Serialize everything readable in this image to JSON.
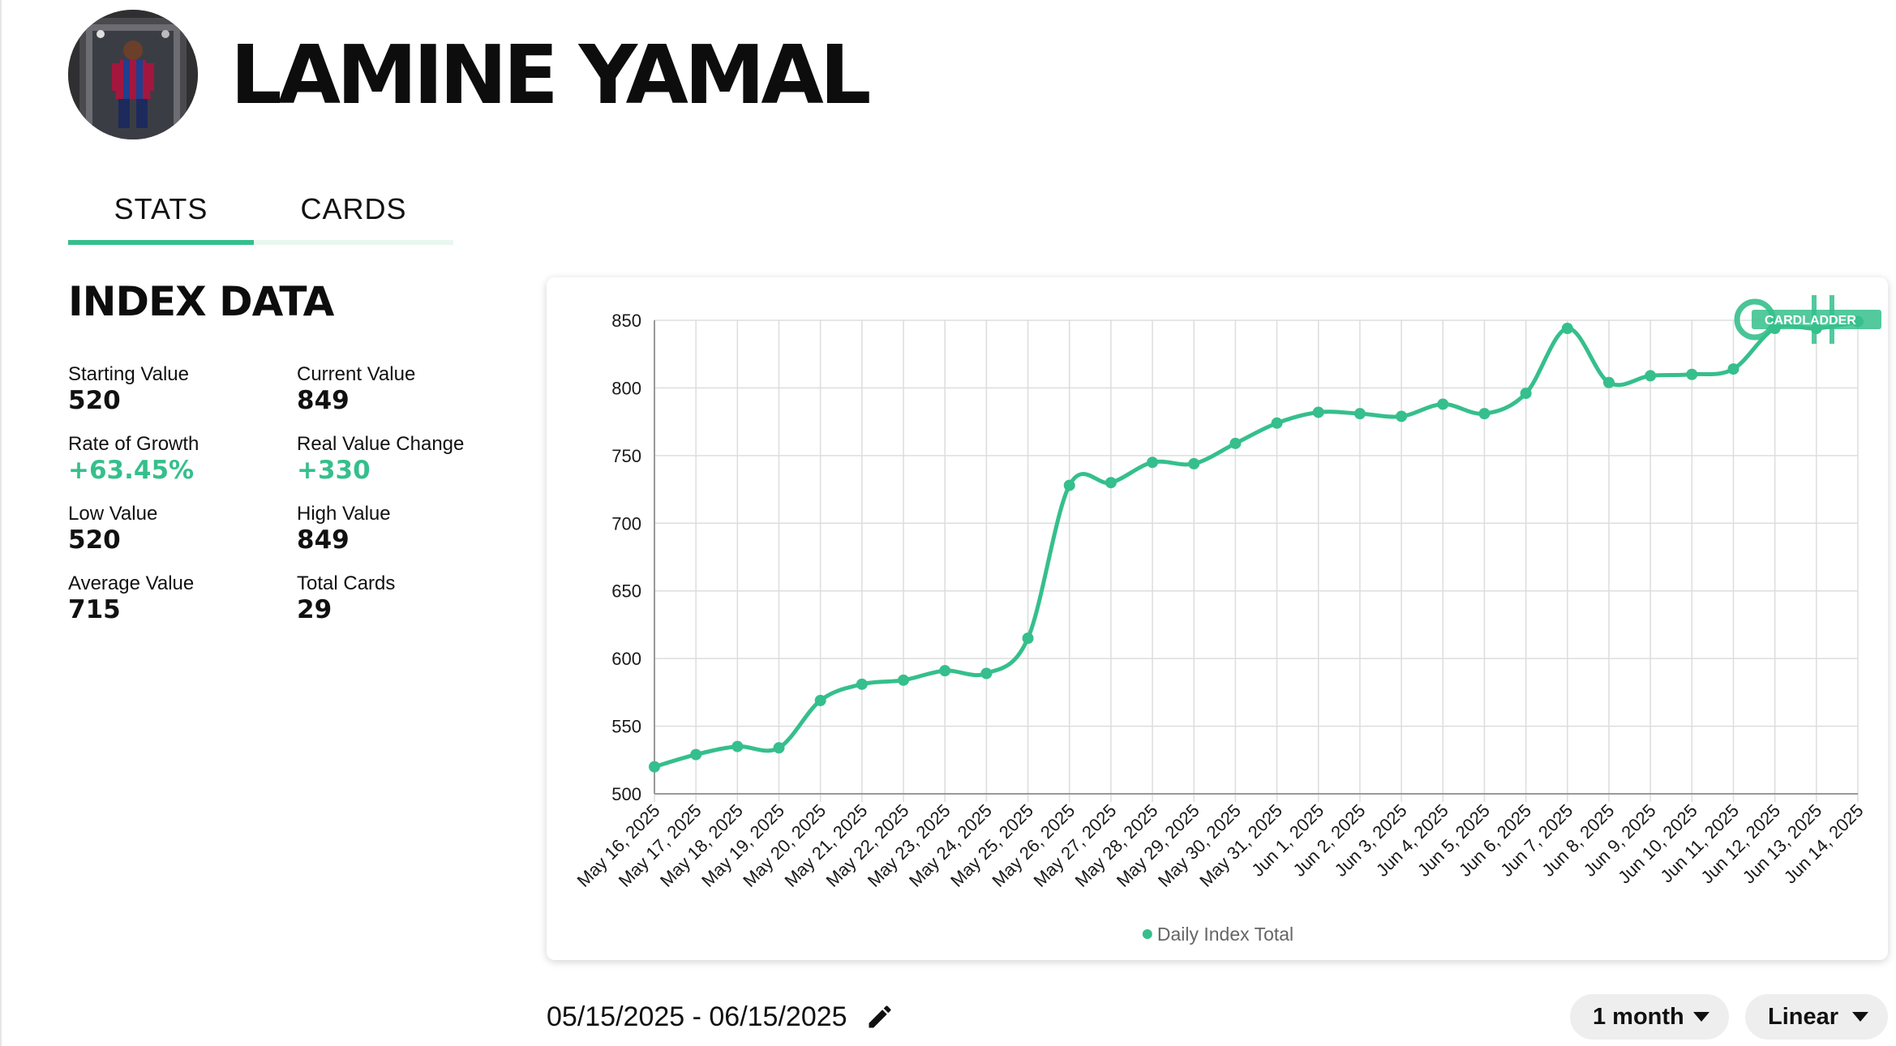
{
  "player": {
    "name": "LAMINE YAMAL"
  },
  "tabs": [
    {
      "label": "STATS",
      "active": true
    },
    {
      "label": "CARDS",
      "active": false
    }
  ],
  "index_data": {
    "title": "INDEX DATA",
    "stats": [
      {
        "label": "Starting Value",
        "value": "520",
        "highlight": false
      },
      {
        "label": "Current Value",
        "value": "849",
        "highlight": false
      },
      {
        "label": "Rate of Growth",
        "value": "+63.45%",
        "highlight": true
      },
      {
        "label": "Real Value Change",
        "value": "+330",
        "highlight": true
      },
      {
        "label": "Low Value",
        "value": "520",
        "highlight": false
      },
      {
        "label": "High Value",
        "value": "849",
        "highlight": false
      },
      {
        "label": "Average Value",
        "value": "715",
        "highlight": false
      },
      {
        "label": "Total Cards",
        "value": "29",
        "highlight": false
      }
    ]
  },
  "colors": {
    "accent": "#35bf8c",
    "grid": "#dddddd"
  },
  "chart_data": {
    "type": "line",
    "title": "",
    "xlabel": "",
    "ylabel": "",
    "ylim": [
      500,
      850
    ],
    "yticks": [
      500,
      550,
      600,
      650,
      700,
      750,
      800,
      850
    ],
    "grid": true,
    "legend": "bottom",
    "watermark": "CARDLADDER",
    "x": [
      "May 16, 2025",
      "May 17, 2025",
      "May 18, 2025",
      "May 19, 2025",
      "May 20, 2025",
      "May 21, 2025",
      "May 22, 2025",
      "May 23, 2025",
      "May 24, 2025",
      "May 25, 2025",
      "May 26, 2025",
      "May 27, 2025",
      "May 28, 2025",
      "May 29, 2025",
      "May 30, 2025",
      "May 31, 2025",
      "Jun 1, 2025",
      "Jun 2, 2025",
      "Jun 3, 2025",
      "Jun 4, 2025",
      "Jun 5, 2025",
      "Jun 6, 2025",
      "Jun 7, 2025",
      "Jun 8, 2025",
      "Jun 9, 2025",
      "Jun 10, 2025",
      "Jun 11, 2025",
      "Jun 12, 2025",
      "Jun 13, 2025",
      "Jun 14, 2025"
    ],
    "series": [
      {
        "name": "Daily Index Total",
        "color": "#35bf8c",
        "values": [
          520,
          529,
          535,
          534,
          569,
          581,
          584,
          591,
          589,
          615,
          728,
          730,
          745,
          744,
          759,
          774,
          782,
          781,
          779,
          788,
          781,
          796,
          844,
          804,
          809,
          810,
          814,
          844,
          844,
          849
        ]
      }
    ]
  },
  "footer": {
    "date_range": "05/15/2025 - 06/15/2025",
    "range_select": "1 month",
    "scale_select": "Linear"
  }
}
